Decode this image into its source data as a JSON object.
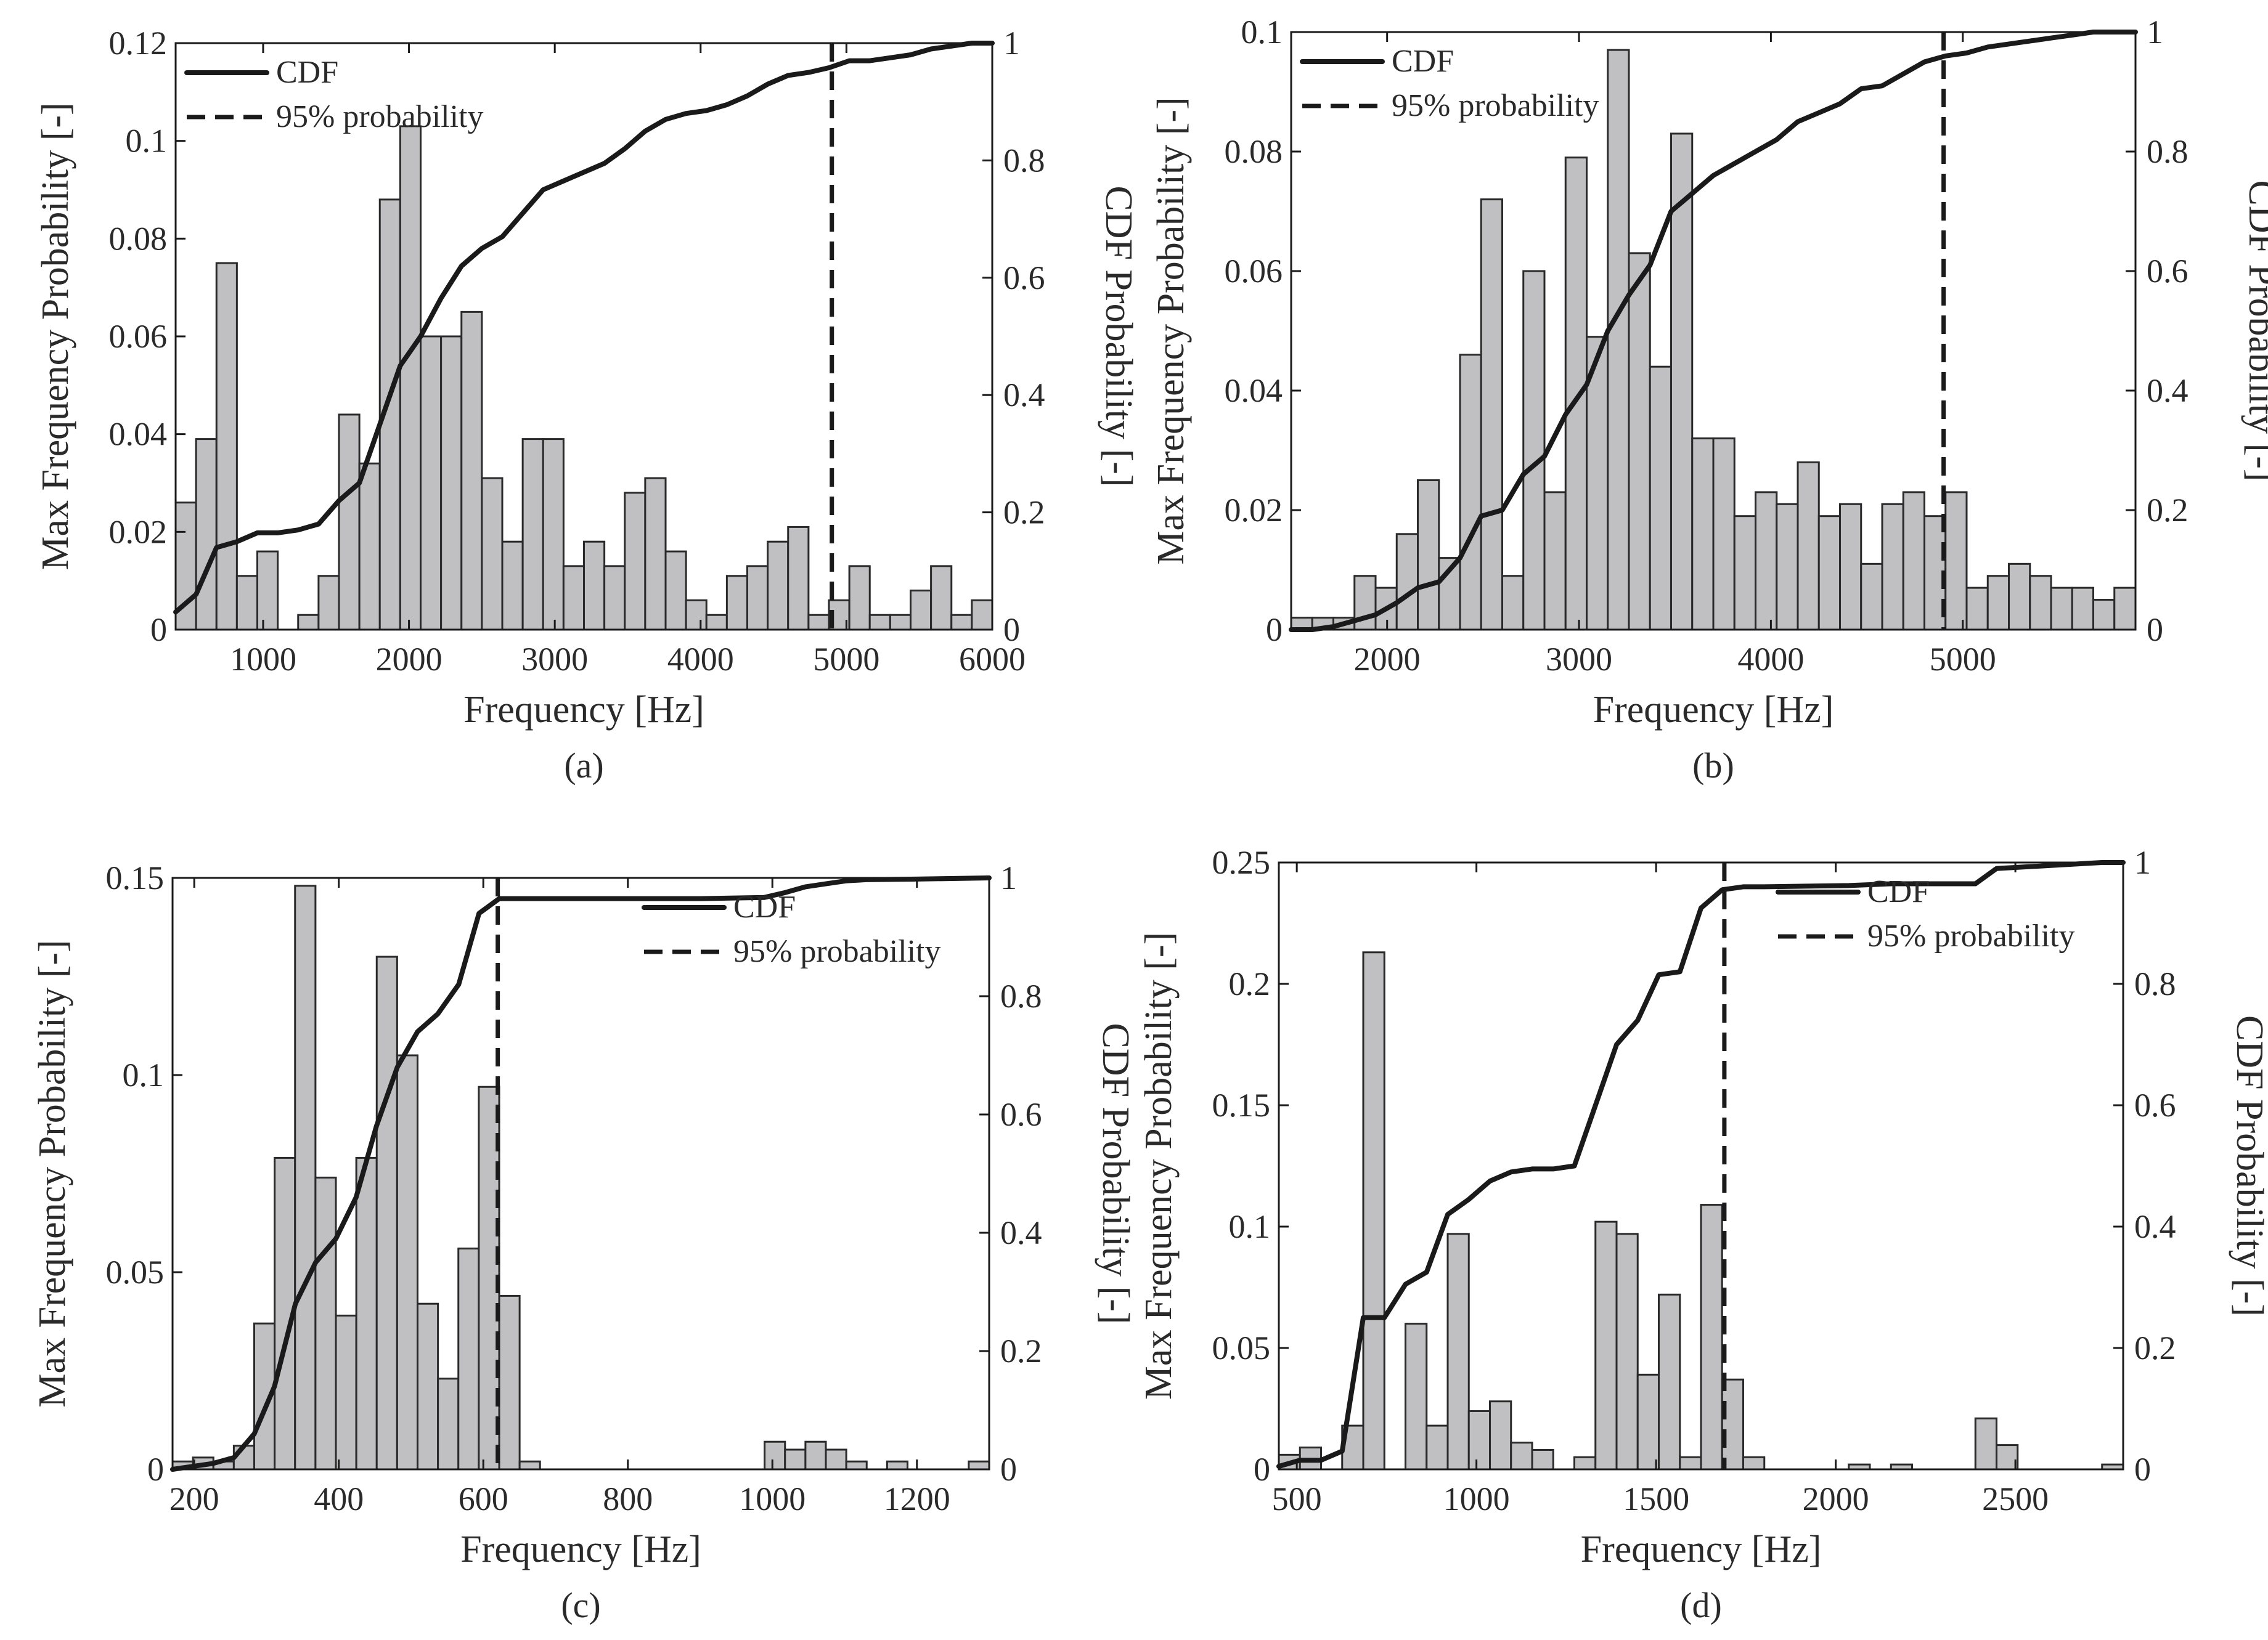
{
  "chart_data": [
    {
      "type": "bar",
      "panel_label": "(a)",
      "xlabel": "Frequency [Hz]",
      "ylabel": "Max Frequency Probability [-]",
      "y2label": "CDF Probability [-]",
      "xlim": [
        400,
        6000
      ],
      "ylim": [
        0,
        0.12
      ],
      "y2lim": [
        0,
        1
      ],
      "xticks": [
        1000,
        2000,
        3000,
        4000,
        5000,
        6000
      ],
      "yticks": [
        0,
        0.02,
        0.04,
        0.06,
        0.08,
        0.1,
        0.12
      ],
      "yticklabels": [
        "0",
        "0.02",
        "0.04",
        "0.06",
        "0.08",
        "0.1",
        "0.12"
      ],
      "y2ticks": [
        0,
        0.2,
        0.4,
        0.6,
        0.8,
        1
      ],
      "y2ticklabels": [
        "0",
        "0.2",
        "0.4",
        "0.6",
        "0.8",
        "1"
      ],
      "xticklabels": [
        "1000",
        "2000",
        "3000",
        "4000",
        "5000",
        "6000"
      ],
      "bin_width": 140,
      "bins_start": [
        400,
        540,
        680,
        820,
        960,
        1240,
        1380,
        1520,
        1660,
        1800,
        1940,
        2080,
        2220,
        2360,
        2500,
        2640,
        2780,
        2920,
        3060,
        3200,
        3340,
        3480,
        3620,
        3760,
        3900,
        4040,
        4180,
        4320,
        4460,
        4600,
        4740,
        4880,
        5020,
        5160,
        5300,
        5440,
        5580,
        5720,
        5860
      ],
      "values": [
        0.026,
        0.039,
        0.075,
        0.011,
        0.016,
        0.003,
        0.011,
        0.044,
        0.034,
        0.088,
        0.103,
        0.06,
        0.06,
        0.065,
        0.031,
        0.018,
        0.039,
        0.039,
        0.013,
        0.018,
        0.013,
        0.028,
        0.031,
        0.016,
        0.006,
        0.003,
        0.011,
        0.013,
        0.018,
        0.021,
        0.003,
        0.006,
        0.013,
        0.003,
        0.003,
        0.008,
        0.013,
        0.003,
        0.006
      ],
      "cdf": {
        "x": [
          400,
          540,
          680,
          820,
          960,
          1100,
          1240,
          1380,
          1520,
          1660,
          1800,
          1940,
          2080,
          2220,
          2360,
          2500,
          2640,
          2780,
          2920,
          3060,
          3200,
          3340,
          3480,
          3620,
          3760,
          3900,
          4040,
          4180,
          4320,
          4460,
          4600,
          4740,
          4880,
          5020,
          5160,
          5300,
          5440,
          5580,
          5720,
          5860,
          6000
        ],
        "y": [
          0.03,
          0.06,
          0.14,
          0.15,
          0.165,
          0.165,
          0.17,
          0.18,
          0.22,
          0.25,
          0.35,
          0.45,
          0.5,
          0.565,
          0.62,
          0.65,
          0.67,
          0.71,
          0.75,
          0.765,
          0.78,
          0.795,
          0.82,
          0.85,
          0.87,
          0.88,
          0.885,
          0.895,
          0.91,
          0.93,
          0.945,
          0.95,
          0.958,
          0.97,
          0.97,
          0.975,
          0.98,
          0.99,
          0.995,
          1.0,
          1.0
        ]
      },
      "percentile_95_x": 4900,
      "legend": {
        "cdf": "CDF",
        "p95": "95% probability",
        "position": "top-left"
      }
    },
    {
      "type": "bar",
      "panel_label": "(b)",
      "xlabel": "Frequency [Hz]",
      "ylabel": "Max Frequency Probability [-]",
      "y2label": "CDF Probability [-]",
      "xlim": [
        1500,
        5900
      ],
      "ylim": [
        0,
        0.1
      ],
      "y2lim": [
        0,
        1
      ],
      "xticks": [
        2000,
        3000,
        4000,
        5000
      ],
      "xticklabels": [
        "2000",
        "3000",
        "4000",
        "5000"
      ],
      "yticks": [
        0,
        0.02,
        0.04,
        0.06,
        0.08,
        0.1
      ],
      "yticklabels": [
        "0",
        "0.02",
        "0.04",
        "0.06",
        "0.08",
        "0.1"
      ],
      "y2ticks": [
        0,
        0.2,
        0.4,
        0.6,
        0.8,
        1
      ],
      "y2ticklabels": [
        "0",
        "0.2",
        "0.4",
        "0.6",
        "0.8",
        "1"
      ],
      "bin_width": 110,
      "bins_start": [
        1500,
        1610,
        1720,
        1830,
        1940,
        2050,
        2160,
        2270,
        2380,
        2490,
        2600,
        2710,
        2820,
        2930,
        3040,
        3150,
        3260,
        3370,
        3480,
        3590,
        3700,
        3810,
        3920,
        4030,
        4140,
        4250,
        4360,
        4470,
        4580,
        4690,
        4800,
        4910,
        5020,
        5130,
        5240,
        5350,
        5460,
        5570,
        5680,
        5790
      ],
      "values": [
        0.002,
        0.002,
        0.002,
        0.009,
        0.007,
        0.016,
        0.025,
        0.012,
        0.046,
        0.072,
        0.009,
        0.06,
        0.023,
        0.079,
        0.049,
        0.097,
        0.063,
        0.044,
        0.083,
        0.032,
        0.032,
        0.019,
        0.023,
        0.021,
        0.028,
        0.019,
        0.021,
        0.011,
        0.021,
        0.023,
        0.019,
        0.023,
        0.007,
        0.009,
        0.011,
        0.009,
        0.007,
        0.007,
        0.005,
        0.007
      ],
      "cdf": {
        "x": [
          1500,
          1610,
          1720,
          1830,
          1940,
          2050,
          2160,
          2270,
          2380,
          2490,
          2600,
          2710,
          2820,
          2930,
          3040,
          3150,
          3260,
          3370,
          3480,
          3590,
          3700,
          3810,
          3920,
          4030,
          4140,
          4250,
          4360,
          4470,
          4580,
          4690,
          4800,
          4910,
          5020,
          5130,
          5240,
          5350,
          5460,
          5570,
          5680,
          5790,
          5900
        ],
        "y": [
          0.0,
          0.0,
          0.005,
          0.015,
          0.025,
          0.045,
          0.07,
          0.08,
          0.12,
          0.19,
          0.2,
          0.26,
          0.29,
          0.36,
          0.41,
          0.5,
          0.56,
          0.61,
          0.7,
          0.73,
          0.76,
          0.78,
          0.8,
          0.82,
          0.85,
          0.865,
          0.88,
          0.905,
          0.91,
          0.93,
          0.95,
          0.96,
          0.965,
          0.975,
          0.98,
          0.985,
          0.99,
          0.995,
          1.0,
          1.0,
          1.0
        ]
      },
      "percentile_95_x": 4900,
      "legend": {
        "cdf": "CDF",
        "p95": "95% probability",
        "position": "top-left"
      }
    },
    {
      "type": "bar",
      "panel_label": "(c)",
      "xlabel": "Frequency [Hz]",
      "ylabel": "Max Frequency Probability [-]",
      "y2label": "CDF Probability [-]",
      "xlim": [
        170,
        1300
      ],
      "ylim": [
        0,
        0.15
      ],
      "y2lim": [
        0,
        1
      ],
      "xticks": [
        200,
        400,
        600,
        800,
        1000,
        1200
      ],
      "xticklabels": [
        "200",
        "400",
        "600",
        "800",
        "1000",
        "1200"
      ],
      "yticks": [
        0,
        0.05,
        0.1,
        0.15
      ],
      "yticklabels": [
        "0",
        "0.05",
        "0.1",
        "0.15"
      ],
      "y2ticks": [
        0,
        0.2,
        0.4,
        0.6,
        0.8,
        1
      ],
      "y2ticklabels": [
        "0",
        "0.2",
        "0.4",
        "0.6",
        "0.8",
        "1"
      ],
      "bin_width": 28.25,
      "bins_start": [
        170,
        198.25,
        226.5,
        254.75,
        283,
        311.25,
        339.5,
        367.75,
        396,
        424.25,
        452.5,
        480.75,
        509,
        537.25,
        565.5,
        593.75,
        622,
        650.25,
        989.25,
        1017.5,
        1045.75,
        1074,
        1102.25,
        1158.75,
        1271.75
      ],
      "values": [
        0.002,
        0.003,
        0.002,
        0.006,
        0.037,
        0.079,
        0.148,
        0.074,
        0.039,
        0.079,
        0.13,
        0.105,
        0.042,
        0.023,
        0.056,
        0.097,
        0.044,
        0.002,
        0.007,
        0.005,
        0.007,
        0.005,
        0.002,
        0.002,
        0.002
      ],
      "cdf": {
        "x": [
          170,
          198,
          226,
          255,
          283,
          311,
          340,
          368,
          396,
          424,
          452,
          481,
          509,
          537,
          566,
          594,
          622,
          650,
          900,
          989,
          1017,
          1046,
          1074,
          1102,
          1130,
          1200,
          1300
        ],
        "y": [
          0.0,
          0.005,
          0.01,
          0.02,
          0.06,
          0.14,
          0.28,
          0.35,
          0.39,
          0.46,
          0.58,
          0.68,
          0.74,
          0.77,
          0.82,
          0.94,
          0.965,
          0.965,
          0.965,
          0.967,
          0.975,
          0.985,
          0.99,
          0.995,
          0.997,
          0.998,
          1.0
        ]
      },
      "percentile_95_x": 620,
      "legend": {
        "cdf": "CDF",
        "p95": "95% probability",
        "position": "top-right"
      }
    },
    {
      "type": "bar",
      "panel_label": "(d)",
      "xlabel": "Frequency [Hz]",
      "ylabel": "Max Frequency Probability [-]",
      "y2label": "CDF Probability [-]",
      "xlim": [
        450,
        2800
      ],
      "ylim": [
        0,
        0.25
      ],
      "y2lim": [
        0,
        1
      ],
      "xticks": [
        500,
        1000,
        1500,
        2000,
        2500
      ],
      "xticklabels": [
        "500",
        "1000",
        "1500",
        "2000",
        "2500"
      ],
      "yticks": [
        0,
        0.05,
        0.1,
        0.15,
        0.2,
        0.25
      ],
      "yticklabels": [
        "0",
        "0.05",
        "0.1",
        "0.15",
        "0.2",
        "0.25"
      ],
      "y2ticks": [
        0,
        0.2,
        0.4,
        0.6,
        0.8,
        1
      ],
      "y2ticklabels": [
        "0",
        "0.2",
        "0.4",
        "0.6",
        "0.8",
        "1"
      ],
      "bin_width": 58.75,
      "bins_start": [
        450,
        508.75,
        626.25,
        685,
        802.5,
        861.25,
        920,
        978.75,
        1037.5,
        1096.25,
        1155,
        1272.5,
        1331.25,
        1390,
        1448.75,
        1507.5,
        1566.25,
        1625,
        1683.75,
        1742.5,
        2036.25,
        2153.75,
        2388.75,
        2447.5,
        2741.25
      ],
      "values": [
        0.006,
        0.009,
        0.018,
        0.213,
        0.06,
        0.018,
        0.097,
        0.024,
        0.028,
        0.011,
        0.008,
        0.005,
        0.102,
        0.097,
        0.039,
        0.072,
        0.005,
        0.109,
        0.037,
        0.005,
        0.002,
        0.002,
        0.021,
        0.01,
        0.002
      ],
      "cdf": {
        "x": [
          450,
          508.75,
          567.5,
          626.25,
          685,
          743.75,
          802.5,
          861.25,
          920,
          978.75,
          1037.5,
          1096.25,
          1155,
          1213.75,
          1272.5,
          1331.25,
          1390,
          1448.75,
          1507.5,
          1566.25,
          1625,
          1683.75,
          1742.5,
          1801.25,
          2036.25,
          2153.75,
          2300,
          2388.75,
          2447.5,
          2741.25,
          2800
        ],
        "y": [
          0.005,
          0.015,
          0.015,
          0.03,
          0.25,
          0.25,
          0.305,
          0.325,
          0.42,
          0.445,
          0.475,
          0.49,
          0.495,
          0.495,
          0.5,
          0.6,
          0.7,
          0.74,
          0.815,
          0.82,
          0.925,
          0.955,
          0.96,
          0.96,
          0.962,
          0.965,
          0.965,
          0.965,
          0.99,
          1.0,
          1.0
        ]
      },
      "percentile_95_x": 1690,
      "legend": {
        "cdf": "CDF",
        "p95": "95% probability",
        "position": "top-right"
      }
    }
  ]
}
